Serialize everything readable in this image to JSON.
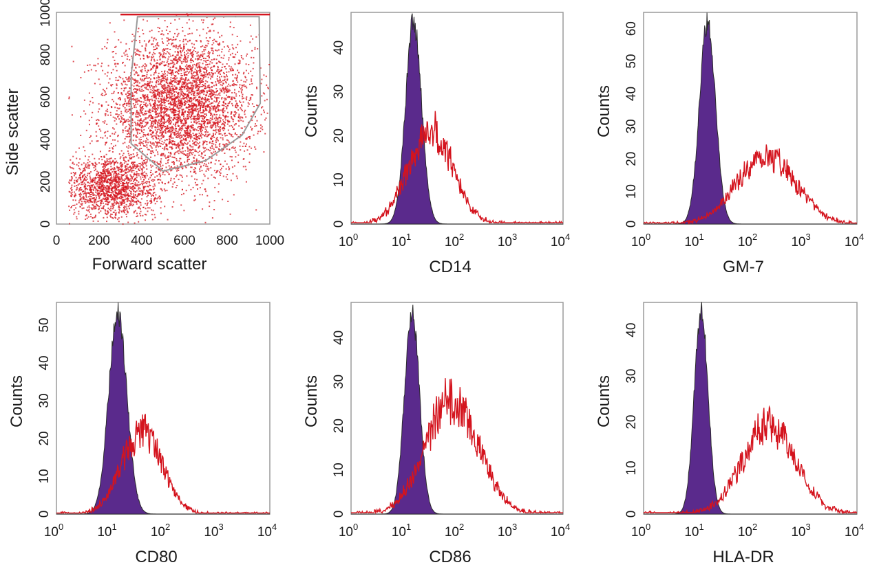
{
  "colors": {
    "negative_fill": "#5a2a8c",
    "negative_edge": "#2b2b2b",
    "positive": "#d4141e",
    "scatter": "#d4141e",
    "gate": "#9a9a9a",
    "frame": "#9a9a9a"
  },
  "chart_data": [
    {
      "id": "scatter",
      "type": "scatter",
      "xlabel": "Forward scatter",
      "ylabel": "Side scatter",
      "xlim": [
        0,
        1000
      ],
      "ylim": [
        0,
        1000
      ],
      "xticks": [
        "0",
        "200",
        "400",
        "600",
        "800",
        "1000"
      ],
      "yticks": [
        "0",
        "200",
        "400",
        "600",
        "800",
        "1000"
      ],
      "clusters": [
        {
          "cx": 580,
          "cy": 560,
          "sx": 170,
          "sy": 170,
          "n": 4200
        },
        {
          "cx": 250,
          "cy": 180,
          "sx": 110,
          "sy": 75,
          "n": 1600
        }
      ],
      "gate_polygon": [
        [
          380,
          980
        ],
        [
          950,
          980
        ],
        [
          955,
          570
        ],
        [
          870,
          420
        ],
        [
          700,
          300
        ],
        [
          500,
          250
        ],
        [
          350,
          380
        ],
        [
          350,
          700
        ]
      ]
    },
    {
      "id": "cd14",
      "type": "area",
      "xlabel": "CD14",
      "ylabel": "Counts",
      "xscale": "log",
      "xlim": [
        1,
        10000
      ],
      "ylim": [
        0,
        48
      ],
      "yticks": [
        0,
        10,
        20,
        30,
        40
      ],
      "xticks": [
        "10",
        "10",
        "10",
        "10",
        "10"
      ],
      "xtick_exps": [
        "0",
        "1",
        "2",
        "3",
        "4"
      ],
      "series": [
        {
          "role": "negative",
          "peak_log": 1.18,
          "width": 0.15,
          "height": 46
        },
        {
          "role": "positive",
          "peak_log": 1.5,
          "width": 0.42,
          "height": 21
        }
      ]
    },
    {
      "id": "gm7",
      "type": "area",
      "xlabel": "GM-7",
      "ylabel": "Counts",
      "xscale": "log",
      "xlim": [
        1,
        10000
      ],
      "ylim": [
        0,
        65
      ],
      "yticks": [
        0,
        10,
        20,
        30,
        40,
        50,
        60
      ],
      "xticks": [
        "10",
        "10",
        "10",
        "10",
        "10"
      ],
      "xtick_exps": [
        "0",
        "1",
        "2",
        "3",
        "4"
      ],
      "series": [
        {
          "role": "negative",
          "peak_log": 1.2,
          "width": 0.15,
          "height": 62
        },
        {
          "role": "positive",
          "peak_log": 2.3,
          "width": 0.55,
          "height": 21
        }
      ]
    },
    {
      "id": "cd80",
      "type": "area",
      "xlabel": "CD80",
      "ylabel": "Counts",
      "xscale": "log",
      "xlim": [
        1,
        10000
      ],
      "ylim": [
        0,
        56
      ],
      "yticks": [
        0,
        10,
        20,
        30,
        40,
        50
      ],
      "xticks": [
        "10",
        "10",
        "10",
        "10",
        "10"
      ],
      "xtick_exps": [
        "0",
        "1",
        "2",
        "3",
        "4"
      ],
      "series": [
        {
          "role": "negative",
          "peak_log": 1.15,
          "width": 0.17,
          "height": 53
        },
        {
          "role": "positive",
          "peak_log": 1.6,
          "width": 0.38,
          "height": 22
        }
      ]
    },
    {
      "id": "cd86",
      "type": "area",
      "xlabel": "CD86",
      "ylabel": "Counts",
      "xscale": "log",
      "xlim": [
        1,
        10000
      ],
      "ylim": [
        0,
        48
      ],
      "yticks": [
        0,
        10,
        20,
        30,
        40
      ],
      "xticks": [
        "10",
        "10",
        "10",
        "10",
        "10"
      ],
      "xtick_exps": [
        "0",
        "1",
        "2",
        "3",
        "4"
      ],
      "series": [
        {
          "role": "negative",
          "peak_log": 1.15,
          "width": 0.14,
          "height": 46
        },
        {
          "role": "positive",
          "peak_log": 1.9,
          "width": 0.5,
          "height": 26
        }
      ]
    },
    {
      "id": "hladr",
      "type": "area",
      "xlabel": "HLA-DR",
      "ylabel": "Counts",
      "xscale": "log",
      "xlim": [
        1,
        10000
      ],
      "ylim": [
        0,
        46
      ],
      "yticks": [
        0,
        10,
        20,
        30,
        40
      ],
      "xticks": [
        "10",
        "10",
        "10",
        "10",
        "10"
      ],
      "xtick_exps": [
        "0",
        "1",
        "2",
        "3",
        "4"
      ],
      "series": [
        {
          "role": "negative",
          "peak_log": 1.08,
          "width": 0.13,
          "height": 44
        },
        {
          "role": "positive",
          "peak_log": 2.35,
          "width": 0.5,
          "height": 19
        }
      ]
    }
  ]
}
